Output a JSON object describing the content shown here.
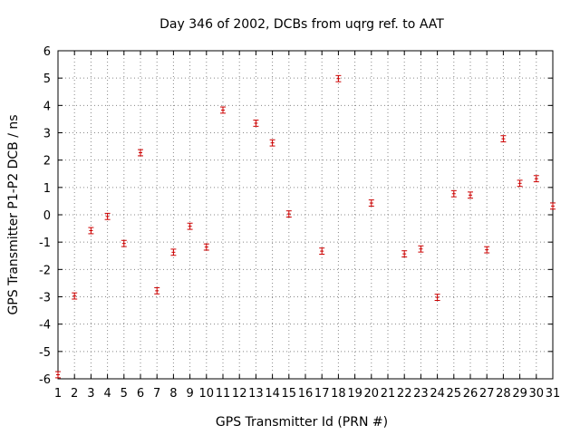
{
  "chart_data": {
    "type": "scatter",
    "title": "Day 346 of 2002, DCBs from uqrg ref. to AAT",
    "xlabel": "GPS Transmitter Id (PRN #)",
    "ylabel": "GPS Transmitter P1-P2 DCB / ns",
    "xlim": [
      1,
      31
    ],
    "ylim": [
      -6,
      6
    ],
    "grid": true,
    "x_ticks": [
      1,
      2,
      3,
      4,
      5,
      6,
      7,
      8,
      9,
      10,
      11,
      12,
      13,
      14,
      15,
      16,
      17,
      18,
      19,
      20,
      21,
      22,
      23,
      24,
      25,
      26,
      27,
      28,
      29,
      30,
      31
    ],
    "y_ticks": [
      6,
      5,
      4,
      3,
      2,
      1,
      0,
      -1,
      -2,
      -3,
      -4,
      -5,
      -6
    ],
    "y_tick_labels": [
      "6",
      "5",
      "4",
      "3",
      "2",
      "1",
      "0",
      "-1",
      "-2",
      "-3",
      "-4",
      "-5",
      "-6"
    ],
    "series": [
      {
        "name": "DCB",
        "color": "#cc0000",
        "points": [
          {
            "x": 1,
            "y": -5.85,
            "err": 0.08
          },
          {
            "x": 2,
            "y": -2.97,
            "err": 0.08
          },
          {
            "x": 3,
            "y": -0.58,
            "err": 0.08
          },
          {
            "x": 4,
            "y": -0.06,
            "err": 0.08
          },
          {
            "x": 5,
            "y": -1.05,
            "err": 0.08
          },
          {
            "x": 6,
            "y": 2.27,
            "err": 0.08
          },
          {
            "x": 7,
            "y": -2.78,
            "err": 0.08
          },
          {
            "x": 8,
            "y": -1.37,
            "err": 0.08
          },
          {
            "x": 9,
            "y": -0.42,
            "err": 0.08
          },
          {
            "x": 10,
            "y": -1.18,
            "err": 0.08
          },
          {
            "x": 11,
            "y": 3.83,
            "err": 0.08
          },
          {
            "x": 13,
            "y": 3.35,
            "err": 0.08
          },
          {
            "x": 14,
            "y": 2.63,
            "err": 0.08
          },
          {
            "x": 15,
            "y": 0.03,
            "err": 0.08
          },
          {
            "x": 17,
            "y": -1.33,
            "err": 0.08
          },
          {
            "x": 18,
            "y": 4.98,
            "err": 0.08
          },
          {
            "x": 20,
            "y": 0.43,
            "err": 0.08
          },
          {
            "x": 22,
            "y": -1.43,
            "err": 0.08
          },
          {
            "x": 23,
            "y": -1.25,
            "err": 0.08
          },
          {
            "x": 24,
            "y": -3.02,
            "err": 0.08
          },
          {
            "x": 25,
            "y": 0.77,
            "err": 0.08
          },
          {
            "x": 26,
            "y": 0.72,
            "err": 0.08
          },
          {
            "x": 27,
            "y": -1.28,
            "err": 0.08
          },
          {
            "x": 28,
            "y": 2.78,
            "err": 0.08
          },
          {
            "x": 29,
            "y": 1.15,
            "err": 0.08
          },
          {
            "x": 30,
            "y": 1.32,
            "err": 0.08
          },
          {
            "x": 31,
            "y": 0.32,
            "err": 0.08
          }
        ]
      }
    ]
  }
}
